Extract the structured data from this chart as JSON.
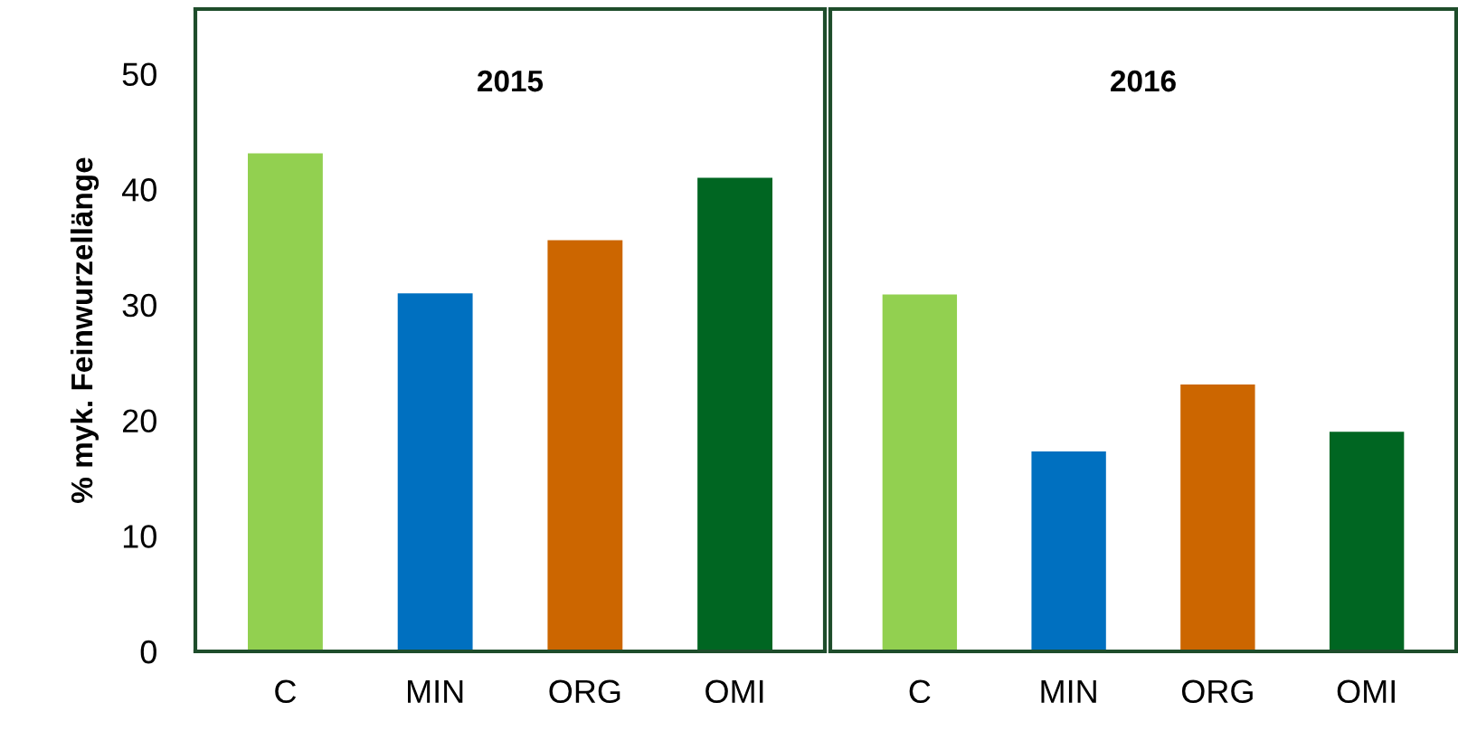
{
  "chart_data": [
    {
      "type": "bar",
      "title": "2015",
      "ylabel": "% myk. Feinwurzellänge",
      "categories": [
        "C",
        "MIN",
        "ORG",
        "OMI"
      ],
      "values": [
        43.1,
        31.0,
        35.6,
        41.0
      ],
      "colors": [
        "#92d050",
        "#0070c0",
        "#cc6600",
        "#006622"
      ],
      "ylim": [
        0,
        55.6
      ],
      "yticks": [
        0,
        10,
        20,
        30,
        40,
        50
      ],
      "grid": false,
      "legend": false
    },
    {
      "type": "bar",
      "title": "2016",
      "categories": [
        "C",
        "MIN",
        "ORG",
        "OMI"
      ],
      "values": [
        30.9,
        17.3,
        23.1,
        19.0
      ],
      "colors": [
        "#92d050",
        "#0070c0",
        "#cc6600",
        "#006622"
      ],
      "ylim": [
        0,
        55.6
      ],
      "tick_labels": "x",
      "grid": false,
      "legend": false
    }
  ]
}
